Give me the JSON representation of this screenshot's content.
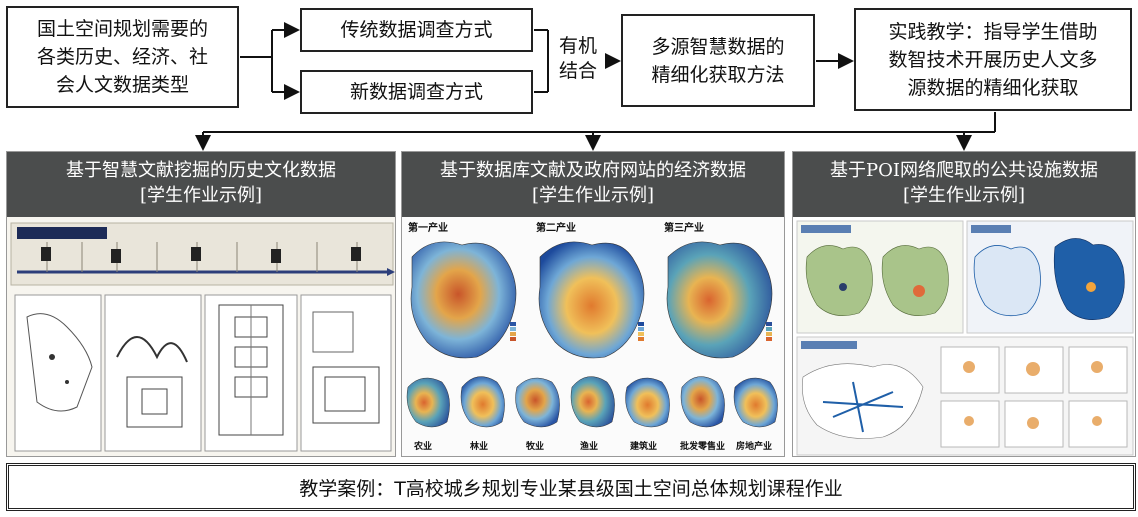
{
  "flow": {
    "categories": "国土空间规划需要的\n各类历史、经济、社\n会人文数据类型",
    "traditional": "传统数据调查方式",
    "new": "新数据调查方式",
    "combine": "有机\n结合",
    "method": "多源智慧数据的\n精细化获取方法",
    "practice": "实践教学：指导学生借助\n数智技术开展历史人文多\n源数据的精细化获取"
  },
  "panels": [
    {
      "title": "基于智慧文献挖掘的历史文化数据",
      "subtitle": "[学生作业示例]"
    },
    {
      "title": "基于数据库文献及政府网站的经济数据",
      "subtitle": "[学生作业示例]"
    },
    {
      "title": "基于POI网络爬取的公共设施数据",
      "subtitle": "[学生作业示例]"
    }
  ],
  "economy_maps": {
    "industries_top": [
      "第一产业",
      "第二产业",
      "第三产业"
    ],
    "sectors_bottom": [
      "农业",
      "林业",
      "牧业",
      "渔业",
      "建筑业",
      "批发零售业",
      "房地产业"
    ]
  },
  "caption": "教学案例：T高校城乡规划专业某县级国土空间总体规划课程作业",
  "colors": {
    "header_bg": "#4b4d4d",
    "map_blue": "#1f5fa8",
    "map_orange": "#e08a2c",
    "map_green": "#a9c48a"
  }
}
